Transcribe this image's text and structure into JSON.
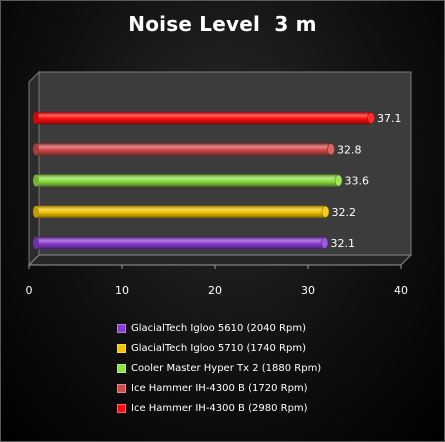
{
  "chart_data": {
    "type": "bar",
    "orientation": "horizontal",
    "style": "3d-cylinder",
    "title": "Noise Level  3 m",
    "xlabel": "",
    "ylabel": "",
    "xlim": [
      0,
      40
    ],
    "xticks": [
      0,
      10,
      20,
      30,
      40
    ],
    "grid": false,
    "legend_position": "bottom",
    "series": [
      {
        "name": "GlacialTech Igloo 5610 (2040 Rpm)",
        "value": 32.1,
        "label": "32.1",
        "color": "#8a3dd0"
      },
      {
        "name": "GlacialTech Igloo 5710 (1740 Rpm)",
        "value": 32.2,
        "label": "32.2",
        "color": "#f2c300"
      },
      {
        "name": "Cooler Master Hyper Tx 2 (1880 Rpm)",
        "value": 33.6,
        "label": "33.6",
        "color": "#8fe043"
      },
      {
        "name": "Ice Hammer  IH-4300 B (1720 Rpm)",
        "value": 32.8,
        "label": "32.8",
        "color": "#d24a4a"
      },
      {
        "name": "Ice Hammer  IH-4300 B (2980 Rpm)",
        "value": 37.1,
        "label": "37.1",
        "color": "#ff0d0d"
      }
    ]
  }
}
